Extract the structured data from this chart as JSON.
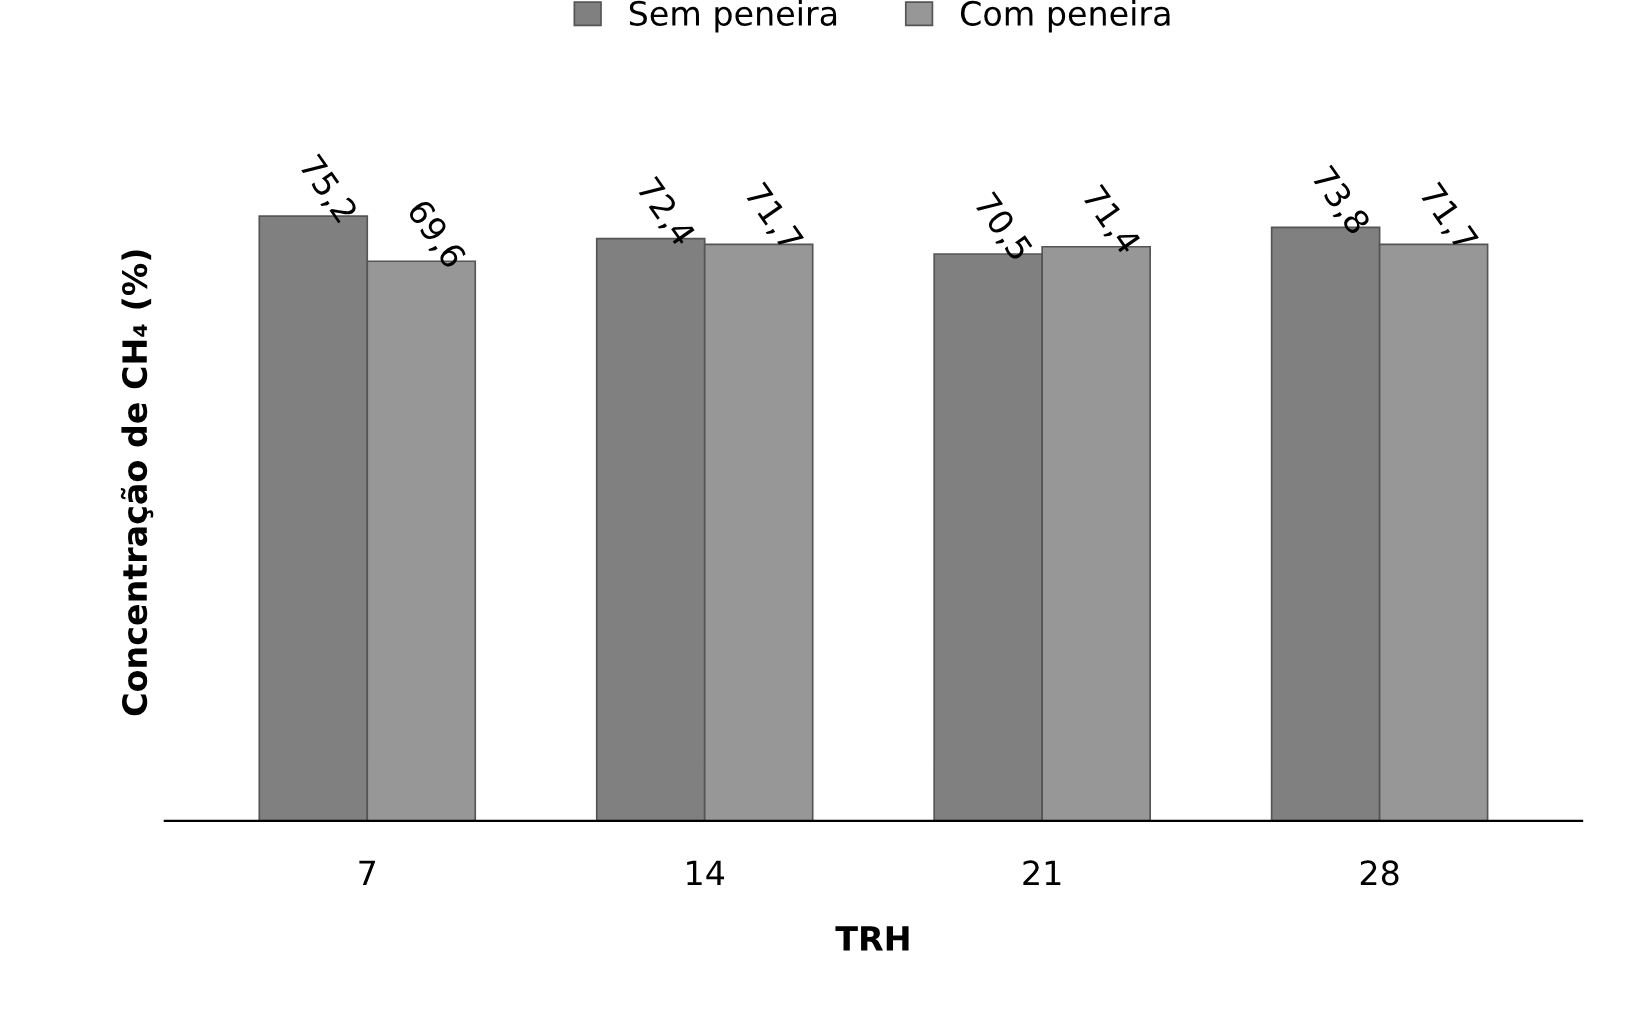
{
  "chart_data": {
    "type": "bar",
    "xlabel": "TRH",
    "ylabel": "Concentração de CH₄ (%)",
    "categories": [
      "7",
      "14",
      "21",
      "28"
    ],
    "series": [
      {
        "name": "Sem peneira",
        "color": "#808080",
        "values": [
          75.2,
          72.4,
          70.5,
          73.8
        ],
        "value_labels": [
          "75,2",
          "72,4",
          "70,5",
          "73,8"
        ]
      },
      {
        "name": "Com peneira",
        "color": "#979797",
        "values": [
          69.6,
          71.7,
          71.4,
          71.7
        ],
        "value_labels": [
          "69,6",
          "71,7",
          "71,4",
          "71,7"
        ]
      }
    ],
    "legend": "top",
    "grid": false,
    "tick_labels": "x"
  }
}
